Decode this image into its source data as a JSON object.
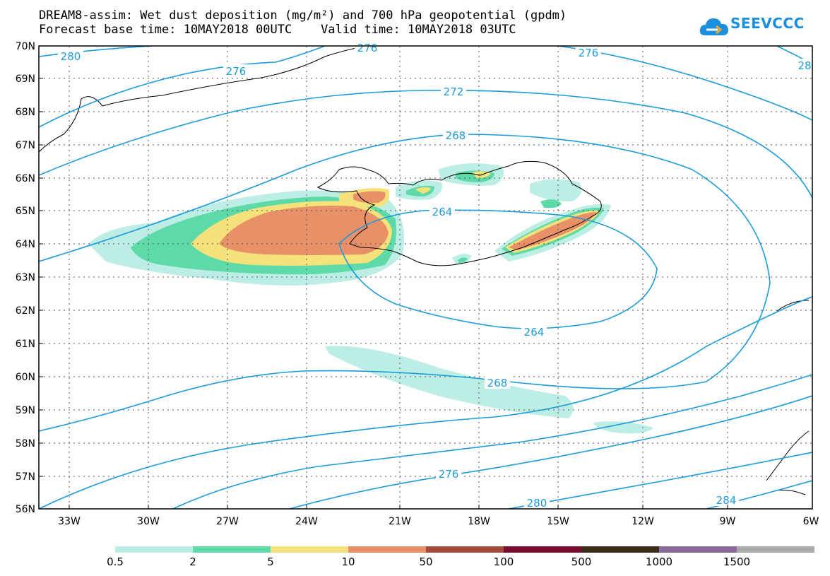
{
  "header": {
    "title_line1": "DREAM8-assim: Wet dust deposition (mg/m²) and 700 hPa geopotential (gpdm)",
    "title_line2": "Forecast base time: 10MAY2018 00UTC    Valid time: 10MAY2018 03UTC",
    "logo_text": "SEEVCCC"
  },
  "map": {
    "region": "Iceland and North Atlantic",
    "lon_labels": [
      "33W",
      "30W",
      "27W",
      "24W",
      "21W",
      "18W",
      "15W",
      "12W",
      "9W",
      "6W"
    ],
    "lat_labels": [
      "70N",
      "69N",
      "68N",
      "67N",
      "66N",
      "65N",
      "64N",
      "63N",
      "62N",
      "61N",
      "60N",
      "59N",
      "58N",
      "57N",
      "56N"
    ],
    "contour_color": "#1c9bdc",
    "contour_labels": [
      "280",
      "276",
      "276",
      "276",
      "28",
      "272",
      "268",
      "264",
      "264",
      "268",
      "276",
      "280",
      "284"
    ]
  },
  "legend": {
    "labels": [
      "0.5",
      "2",
      "5",
      "10",
      "50",
      "100",
      "500",
      "1000",
      "1500"
    ],
    "colors": [
      "#bdeee5",
      "#5ed9a8",
      "#f5e27a",
      "#e89068",
      "#a24a3e",
      "#7a0c2e",
      "#3a2a18",
      "#8a6a9a",
      "#aaaaaa"
    ]
  }
}
